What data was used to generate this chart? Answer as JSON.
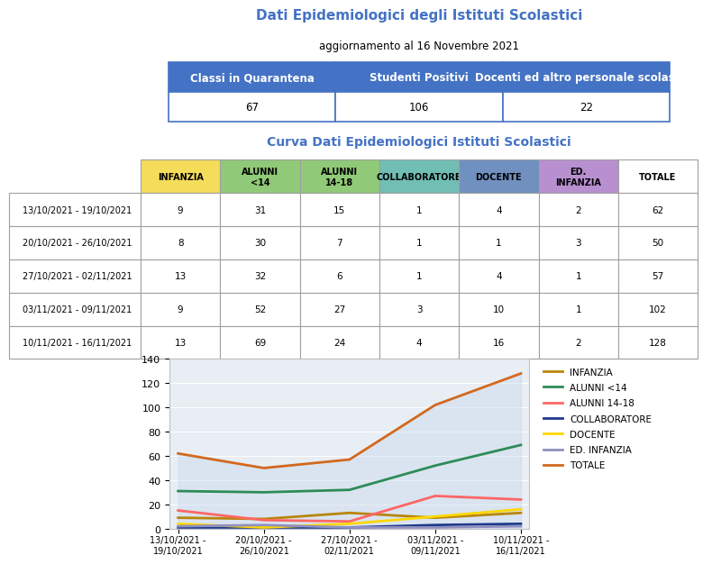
{
  "title": "Dati Epidemiologici degli Istituti Scolastici",
  "subtitle": "aggiornamento al 16 Novembre 2021",
  "title_color": "#4472C4",
  "top_table": {
    "headers": [
      "Classi in Quarantena",
      "Studenti Positivi",
      "Docenti ed altro personale scolastico"
    ],
    "values": [
      "67",
      "106",
      "22"
    ],
    "header_bg": "#4472C4",
    "border_color": "#4472C4"
  },
  "curve_title": "Curva Dati Epidemiologici Istituti Scolastici",
  "curve_title_color": "#4472C4",
  "data_table": {
    "row_labels": [
      "13/10/2021 - 19/10/2021",
      "20/10/2021 - 26/10/2021",
      "27/10/2021 - 02/11/2021",
      "03/11/2021 - 09/11/2021",
      "10/11/2021 - 16/11/2021"
    ],
    "col_headers": [
      "INFANZIA",
      "ALUNNI\n<14",
      "ALUNNI\n14-18",
      "COLLABORATORE",
      "DOCENTE",
      "ED.\nINFANZIA",
      "TOTALE"
    ],
    "col_header_colors": [
      "#F5DC5A",
      "#90C978",
      "#90C978",
      "#70BEB4",
      "#7090C0",
      "#B890D0",
      "#FFFFFF"
    ],
    "data": [
      [
        9,
        31,
        15,
        1,
        4,
        2,
        62
      ],
      [
        8,
        30,
        7,
        1,
        1,
        3,
        50
      ],
      [
        13,
        32,
        6,
        1,
        4,
        1,
        57
      ],
      [
        9,
        52,
        27,
        3,
        10,
        1,
        102
      ],
      [
        13,
        69,
        24,
        4,
        16,
        2,
        128
      ]
    ]
  },
  "chart": {
    "x_labels": [
      "13/10/2021 -\n19/10/2021",
      "20/10/2021 -\n26/10/2021",
      "27/10/2021 -\n02/11/2021",
      "03/11/2021 -\n09/11/2021",
      "10/11/2021 -\n16/11/2021"
    ],
    "series_names": [
      "INFANZIA",
      "ALUNNI <14",
      "ALUNNI 14-18",
      "COLLABORATORE",
      "DOCENTE",
      "ED. INFANZIA",
      "TOTALE"
    ],
    "series_values": [
      [
        9,
        8,
        13,
        9,
        13
      ],
      [
        31,
        30,
        32,
        52,
        69
      ],
      [
        15,
        7,
        6,
        27,
        24
      ],
      [
        1,
        1,
        1,
        3,
        4
      ],
      [
        4,
        1,
        4,
        10,
        16
      ],
      [
        2,
        3,
        1,
        1,
        2
      ],
      [
        62,
        50,
        57,
        102,
        128
      ]
    ],
    "series_colors": [
      "#B8860B",
      "#2E8B57",
      "#FF6666",
      "#1E3A8A",
      "#FFD700",
      "#9090C0",
      "#D2691E"
    ],
    "ylim": [
      0,
      140
    ],
    "yticks": [
      0,
      20,
      40,
      60,
      80,
      100,
      120,
      140
    ],
    "bg_color": "#E8EEF4",
    "fill_color": "#C8D8EC",
    "fill_alpha": 0.45
  }
}
